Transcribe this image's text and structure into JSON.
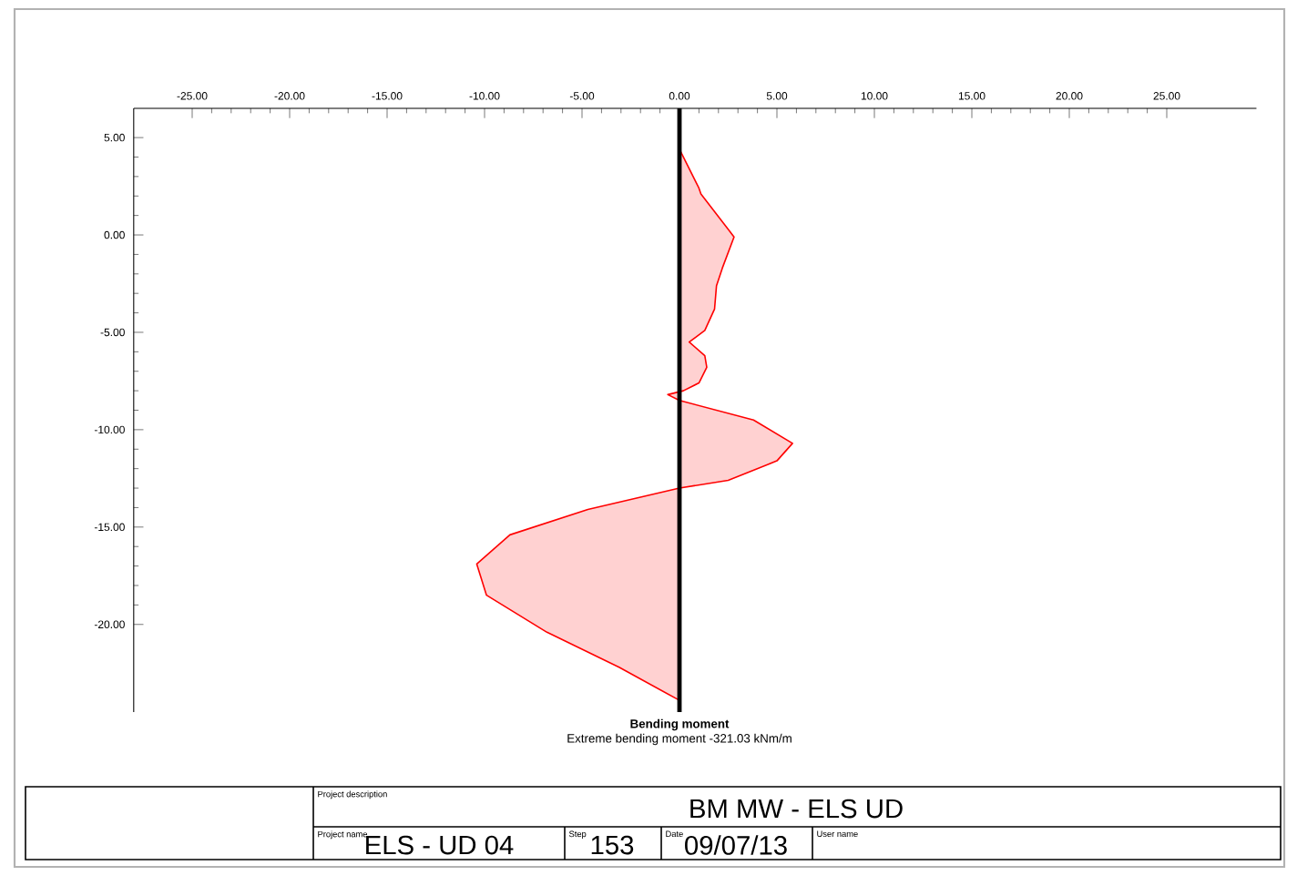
{
  "chart_data": {
    "type": "area",
    "title": "BM MW - ELS UD",
    "xlabel": "Bending moment",
    "annotations": [
      "Extreme bending moment -321.03 kNm/m",
      "Project description",
      "Project name",
      "ELS - UD 04",
      "Step",
      "153",
      "Date",
      "09/07/13",
      "User name"
    ],
    "xlim": [
      -28,
      29.6
    ],
    "ylim": [
      -24.5,
      6.5
    ],
    "xticks": [
      {
        "value": -25,
        "label": "-25.00"
      },
      {
        "value": -20,
        "label": "-20.00"
      },
      {
        "value": -15,
        "label": "-15.00"
      },
      {
        "value": -10,
        "label": "-10.00"
      },
      {
        "value": -5,
        "label": "-5.00"
      },
      {
        "value": 0,
        "label": "0.00"
      },
      {
        "value": 5,
        "label": "5.00"
      },
      {
        "value": 10,
        "label": "10.00"
      },
      {
        "value": 15,
        "label": "15.00"
      },
      {
        "value": 20,
        "label": "20.00"
      },
      {
        "value": 25,
        "label": "25.00"
      }
    ],
    "yticks": [
      {
        "value": 5,
        "label": "5.00"
      },
      {
        "value": 0,
        "label": "0.00"
      },
      {
        "value": -5,
        "label": "-5.00"
      },
      {
        "value": -10,
        "label": "-10.00"
      },
      {
        "value": -15,
        "label": "-15.00"
      },
      {
        "value": -20,
        "label": "-20.00"
      }
    ],
    "series": [
      {
        "color": "#ff0000",
        "x": [
          0,
          1.0,
          1.1,
          2.8,
          2.2,
          1.9,
          1.8,
          1.3,
          0.5,
          1.3,
          1.4,
          1.0,
          0.2,
          -0.6,
          0,
          3.8,
          5.8,
          5.0,
          2.5,
          0,
          -4.7,
          -8.7,
          -10.4,
          -9.9,
          -6.8,
          -3.1,
          0
        ],
        "values": [
          4.4,
          2.4,
          2.1,
          -0.1,
          -1.7,
          -2.6,
          -3.8,
          -4.9,
          -5.5,
          -6.2,
          -6.8,
          -7.6,
          -8.0,
          -8.2,
          -8.5,
          -9.5,
          -10.7,
          -11.6,
          -12.6,
          -13.0,
          -14.1,
          -15.4,
          -16.9,
          -18.5,
          -20.4,
          -22.2,
          -23.9
        ]
      }
    ],
    "ref_lines": [
      {
        "axis": "x",
        "value": 0,
        "color": "#000000"
      }
    ]
  }
}
